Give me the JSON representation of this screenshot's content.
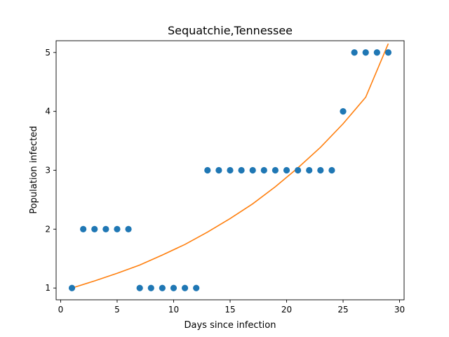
{
  "chart_data": {
    "type": "scatter",
    "title": "Sequatchie,Tennessee",
    "xlabel": "Days since infection",
    "ylabel": "Population infected",
    "xlim": [
      -0.4,
      30.4
    ],
    "ylim": [
      0.8,
      5.2
    ],
    "xticks": [
      0,
      5,
      10,
      15,
      20,
      25,
      30
    ],
    "yticks": [
      1,
      2,
      3,
      4,
      5
    ],
    "grid": false,
    "series": [
      {
        "kind": "scatter",
        "color": "#1f77b4",
        "points": [
          [
            1,
            1
          ],
          [
            2,
            2
          ],
          [
            3,
            2
          ],
          [
            4,
            2
          ],
          [
            5,
            2
          ],
          [
            6,
            2
          ],
          [
            7,
            1
          ],
          [
            8,
            1
          ],
          [
            9,
            1
          ],
          [
            10,
            1
          ],
          [
            11,
            1
          ],
          [
            12,
            1
          ],
          [
            13,
            3
          ],
          [
            14,
            3
          ],
          [
            15,
            3
          ],
          [
            16,
            3
          ],
          [
            17,
            3
          ],
          [
            18,
            3
          ],
          [
            19,
            3
          ],
          [
            20,
            3
          ],
          [
            21,
            3
          ],
          [
            22,
            3
          ],
          [
            23,
            3
          ],
          [
            24,
            3
          ],
          [
            25,
            4
          ],
          [
            26,
            5
          ],
          [
            27,
            5
          ],
          [
            28,
            5
          ],
          [
            29,
            5
          ]
        ]
      },
      {
        "kind": "line",
        "color": "#ff7f0e",
        "fit": "exponential",
        "x_range": [
          1,
          29
        ],
        "points": [
          [
            1,
            1.0
          ],
          [
            3,
            1.12
          ],
          [
            5,
            1.25
          ],
          [
            7,
            1.39
          ],
          [
            9,
            1.56
          ],
          [
            11,
            1.74
          ],
          [
            13,
            1.95
          ],
          [
            15,
            2.18
          ],
          [
            17,
            2.43
          ],
          [
            19,
            2.72
          ],
          [
            21,
            3.04
          ],
          [
            23,
            3.39
          ],
          [
            25,
            3.79
          ],
          [
            27,
            4.24
          ],
          [
            29,
            5.15
          ]
        ]
      }
    ]
  }
}
